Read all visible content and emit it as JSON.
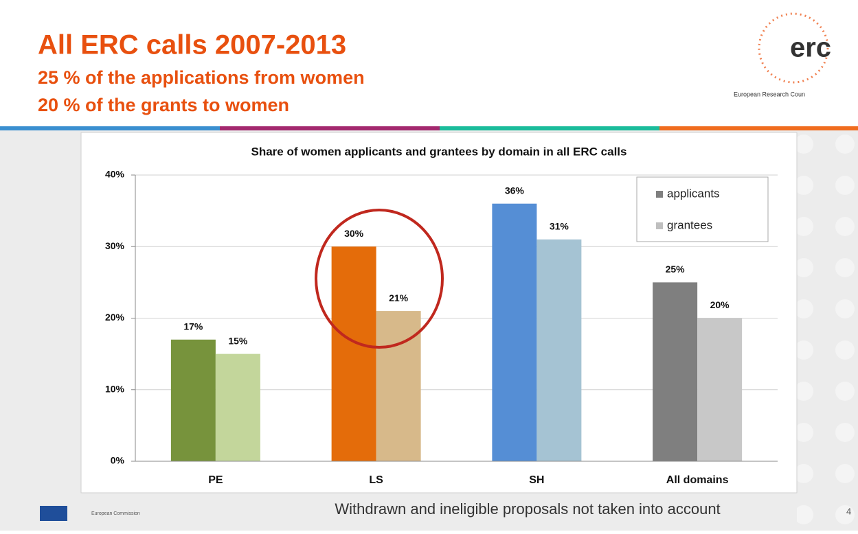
{
  "header": {
    "title": "All ERC calls 2007-2013",
    "lines": [
      "25 % of the applications from women",
      "20 % of the grants to women"
    ],
    "logo": "erc",
    "logo_caption": "European Research Coun"
  },
  "footer": {
    "note": "Withdrawn and ineligible proposals not taken into account",
    "page": "4",
    "commission": "European Commission"
  },
  "chart_data": {
    "type": "bar",
    "title": "Share of women applicants and grantees by domain in all ERC calls",
    "categories": [
      "PE",
      "LS",
      "SH",
      "All domains"
    ],
    "series": [
      {
        "name": "applicants",
        "color": "#7f7f7f",
        "colors": [
          "#77933c",
          "#e46c0a",
          "#558ed5",
          "#7f7f7f"
        ],
        "values": [
          17,
          30,
          36,
          25
        ],
        "value_labels": [
          "17%",
          "30%",
          "36%",
          "25%"
        ]
      },
      {
        "name": "grantees",
        "color": "#bfbfbf",
        "colors": [
          "#c3d69b",
          "#d7b98a",
          "#a5c3d3",
          "#c8c8c8"
        ],
        "values": [
          15,
          21,
          31,
          20
        ],
        "value_labels": [
          "15%",
          "21%",
          "31%",
          "20%"
        ]
      }
    ],
    "ylim": [
      0,
      40
    ],
    "yticks": [
      {
        "value": 0,
        "label": "0%"
      },
      {
        "value": 10,
        "label": "10%"
      },
      {
        "value": 20,
        "label": "20%"
      },
      {
        "value": 30,
        "label": "30%"
      },
      {
        "value": 40,
        "label": "40%"
      }
    ],
    "grid": true,
    "legend": "upper right"
  }
}
